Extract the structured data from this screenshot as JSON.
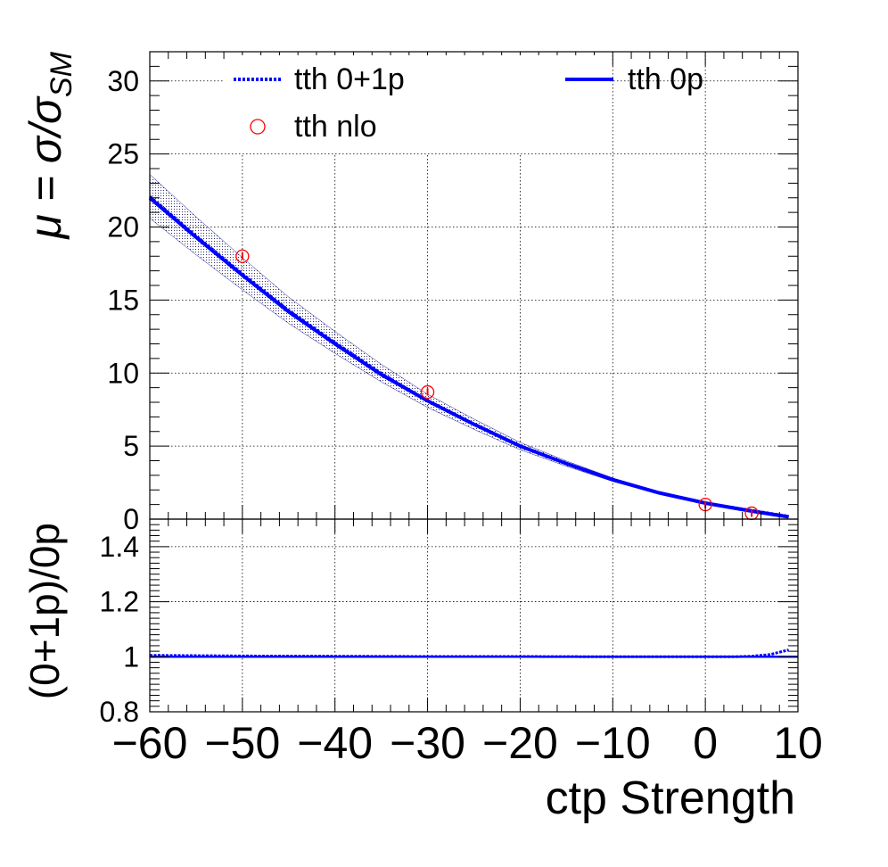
{
  "chart_data": [
    {
      "type": "line",
      "panel": "main",
      "xlim": [
        -60,
        10
      ],
      "ylim": [
        0,
        32
      ],
      "ylabel_main": "μ = σ/σ",
      "ylabel_sub": "SM",
      "xticks": [
        "−60",
        "−50",
        "−40",
        "−30",
        "−20",
        "−10",
        "0",
        "10"
      ],
      "yticks": [
        "0",
        "5",
        "10",
        "15",
        "20",
        "25",
        "30"
      ],
      "ytick_values": [
        0,
        5,
        10,
        15,
        20,
        25,
        30
      ],
      "grid": true,
      "legend_placement": "top",
      "legend": [
        {
          "label": "tth 0+1p",
          "style": "dotted-line",
          "color": "#0000ff"
        },
        {
          "label": "tth 0p",
          "style": "solid-line",
          "color": "#0000ff"
        },
        {
          "label": "tth nlo",
          "style": "open-circle",
          "color": "#ff0000"
        }
      ],
      "series": [
        {
          "name": "tth 0+1p",
          "style": "dotted",
          "x": [
            -60,
            -55,
            -50,
            -45,
            -40,
            -35,
            -30,
            -25,
            -20,
            -15,
            -10,
            -5,
            0,
            5,
            9
          ],
          "y": [
            22.1,
            19.4,
            16.8,
            14.3,
            12.1,
            10.0,
            8.1,
            6.5,
            5.0,
            3.8,
            2.7,
            1.8,
            1.1,
            0.6,
            0.2
          ],
          "band_halfwidth": [
            1.5,
            1.3,
            1.1,
            0.9,
            0.75,
            0.6,
            0.45,
            0.35,
            0.25,
            0.18,
            0.12,
            0.08,
            0.05,
            0.04,
            0.03
          ]
        },
        {
          "name": "tth 0p",
          "style": "solid",
          "x": [
            -60,
            -55,
            -50,
            -45,
            -40,
            -35,
            -30,
            -25,
            -20,
            -15,
            -10,
            -5,
            0,
            5,
            9
          ],
          "y": [
            22.0,
            19.3,
            16.7,
            14.2,
            12.0,
            9.9,
            8.1,
            6.5,
            5.0,
            3.8,
            2.7,
            1.8,
            1.1,
            0.55,
            0.15
          ]
        },
        {
          "name": "tth nlo",
          "style": "markers",
          "x": [
            -50,
            -30,
            0,
            5
          ],
          "y": [
            18.0,
            8.7,
            1.0,
            0.4
          ]
        }
      ]
    },
    {
      "type": "line",
      "panel": "ratio",
      "xlim": [
        -60,
        10
      ],
      "ylim": [
        0.8,
        1.5
      ],
      "ylabel": "(0+1p)/0p",
      "xlabel": "ctp Strength",
      "yticks": [
        "0.8",
        "1",
        "1.2",
        "1.4"
      ],
      "ytick_values": [
        0.8,
        1.0,
        1.2,
        1.4
      ],
      "grid": true,
      "reference_line": 1.0,
      "series": [
        {
          "name": "(0+1p)/0p",
          "x": [
            -60,
            -50,
            -40,
            -30,
            -20,
            -10,
            0,
            3,
            5,
            7,
            9
          ],
          "y": [
            1.005,
            1.003,
            1.002,
            1.001,
            1.001,
            1.0,
            1.0,
            1.0,
            1.002,
            1.008,
            1.025
          ]
        }
      ]
    }
  ]
}
